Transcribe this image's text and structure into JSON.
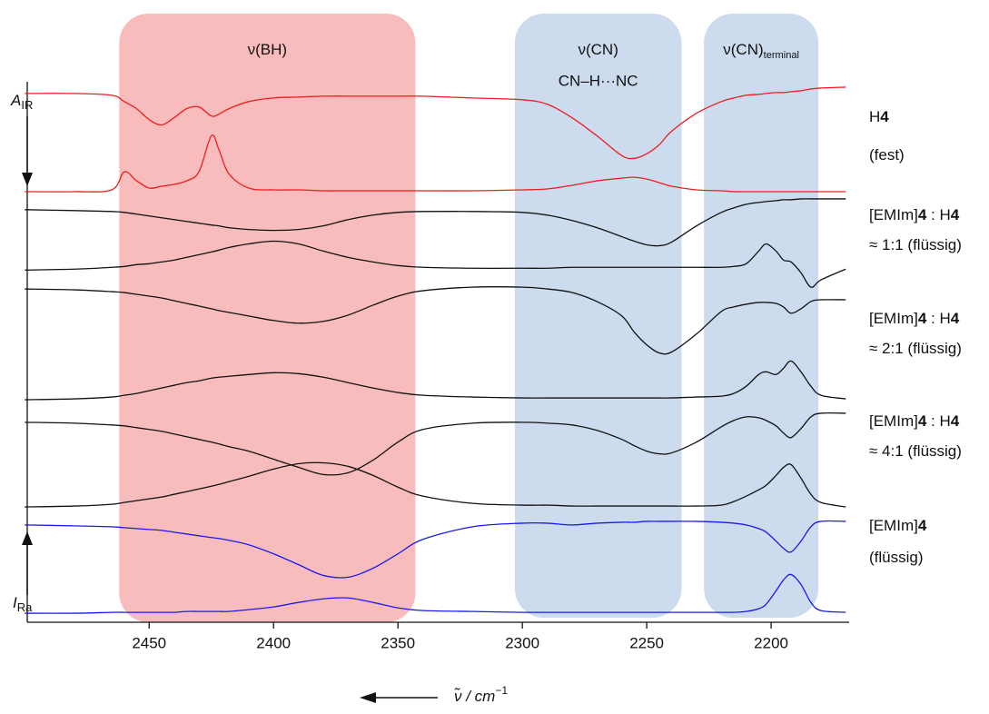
{
  "chart_data": {
    "type": "line",
    "xlim": [
      2499,
      2169
    ],
    "xticks": [
      2450,
      2400,
      2350,
      2300,
      2250,
      2200
    ],
    "ylim": [
      0,
      600
    ],
    "x_label": {
      "main": "ν̃ / cm",
      "sup": "−1"
    },
    "y_top_label": {
      "main": "A",
      "sub": "IR"
    },
    "y_bottom_label": {
      "main": "I",
      "sub": "Ra"
    },
    "regions": [
      {
        "xlim": [
          2462,
          2343
        ],
        "color": "#f9bcbc",
        "label": [
          {
            "text": "ν(BH)"
          }
        ]
      },
      {
        "xlim": [
          2303,
          2236
        ],
        "color": "#ccdcee",
        "label": [
          {
            "text": "ν(CN)"
          }
        ],
        "label2": "CN–H···NC"
      },
      {
        "xlim": [
          2227,
          2181
        ],
        "color": "#ccdcee",
        "label": [
          {
            "text": "ν(CN)"
          },
          {
            "text": "terminal",
            "sub": true
          }
        ]
      }
    ],
    "sample_labels": [
      [
        [
          {
            "text": "H"
          },
          {
            "text": "4",
            "bold": true
          }
        ],
        [
          {
            "text": "(fest)"
          }
        ]
      ],
      [
        [
          {
            "text": "[EMIm]"
          },
          {
            "text": "4",
            "bold": true
          },
          {
            "text": " : H"
          },
          {
            "text": "4",
            "bold": true
          }
        ],
        [
          {
            "text": "≈ 1:1 (flüssig)"
          }
        ]
      ],
      [
        [
          {
            "text": "[EMIm]"
          },
          {
            "text": "4",
            "bold": true
          },
          {
            "text": " : H"
          },
          {
            "text": "4",
            "bold": true
          }
        ],
        [
          {
            "text": "≈ 2:1 (flüssig)"
          }
        ]
      ],
      [
        [
          {
            "text": "[EMIm]"
          },
          {
            "text": "4",
            "bold": true
          },
          {
            "text": " : H"
          },
          {
            "text": "4",
            "bold": true
          }
        ],
        [
          {
            "text": "≈ 4:1 (flüssig)"
          }
        ]
      ],
      [
        [
          {
            "text": "[EMIm]"
          },
          {
            "text": "4",
            "bold": true
          }
        ],
        [
          {
            "text": "(flüssig)"
          }
        ]
      ]
    ],
    "x": [
      2500,
      2480,
      2465,
      2460,
      2455,
      2450,
      2445,
      2440,
      2435,
      2430,
      2425,
      2422,
      2418,
      2410,
      2400,
      2390,
      2380,
      2370,
      2360,
      2350,
      2340,
      2320,
      2300,
      2290,
      2280,
      2270,
      2260,
      2255,
      2250,
      2245,
      2240,
      2230,
      2220,
      2215,
      2210,
      2205,
      2202,
      2198,
      2195,
      2192,
      2188,
      2184,
      2180,
      2170
    ],
    "series": [
      {
        "color": "#ee1c1c",
        "values": [
          587,
          587,
          585,
          578,
          570,
          558,
          552,
          560,
          570,
          572,
          562,
          564,
          570,
          578,
          582,
          583,
          584,
          584,
          584,
          584,
          584,
          582,
          580,
          575,
          560,
          540,
          518,
          515,
          520,
          530,
          545,
          565,
          578,
          582,
          585,
          586,
          587,
          588,
          588,
          589,
          590,
          592,
          593,
          594
        ]
      },
      {
        "color": "#ee1c1c",
        "values": [
          478,
          478,
          480,
          500,
          490,
          482,
          484,
          486,
          490,
          500,
          540,
          525,
          498,
          482,
          480,
          480,
          479,
          479,
          479,
          479,
          479,
          479,
          480,
          481,
          485,
          490,
          493,
          494,
          492,
          488,
          484,
          480,
          479,
          478,
          478,
          478,
          478,
          478,
          478,
          478,
          478,
          478,
          478,
          478
        ]
      },
      {
        "color": "#111111",
        "values": [
          458,
          457,
          456,
          455,
          453,
          451,
          449,
          447,
          445,
          443,
          441,
          440,
          438,
          436,
          435,
          436,
          440,
          447,
          452,
          455,
          456,
          456,
          455,
          452,
          446,
          438,
          428,
          423,
          419,
          418,
          422,
          440,
          455,
          460,
          464,
          466,
          467,
          468,
          469,
          469,
          470,
          470,
          470,
          470
        ]
      },
      {
        "color": "#111111",
        "values": [
          391,
          392,
          394,
          395,
          397,
          398,
          400,
          402,
          405,
          408,
          411,
          413,
          416,
          420,
          423,
          420,
          412,
          405,
          400,
          396,
          394,
          393,
          393,
          393,
          394,
          394,
          394,
          394,
          394,
          394,
          394,
          394,
          394,
          395,
          398,
          412,
          420,
          412,
          402,
          400,
          388,
          372,
          380,
          392
        ]
      },
      {
        "color": "#111111",
        "values": [
          370,
          369,
          367,
          366,
          364,
          362,
          360,
          357,
          354,
          351,
          348,
          346,
          344,
          340,
          335,
          332,
          334,
          341,
          352,
          362,
          368,
          372,
          372,
          370,
          366,
          356,
          340,
          322,
          308,
          299,
          300,
          320,
          345,
          350,
          353,
          355,
          355,
          354,
          350,
          343,
          348,
          356,
          358,
          358
        ]
      },
      {
        "color": "#111111",
        "values": [
          247,
          248,
          250,
          252,
          254,
          257,
          260,
          263,
          266,
          268,
          271,
          272,
          273,
          275,
          277,
          276,
          272,
          266,
          260,
          255,
          252,
          250,
          249,
          249,
          249,
          249,
          249,
          249,
          249,
          249,
          249,
          250,
          251,
          254,
          262,
          275,
          278,
          275,
          282,
          290,
          278,
          262,
          252,
          248
        ]
      },
      {
        "color": "#111111",
        "values": [
          222,
          221,
          219,
          218,
          216,
          214,
          212,
          209,
          206,
          203,
          200,
          198,
          195,
          190,
          181,
          172,
          164,
          166,
          180,
          200,
          214,
          221,
          222,
          221,
          219,
          213,
          203,
          196,
          190,
          187,
          188,
          200,
          217,
          224,
          228,
          227,
          224,
          218,
          210,
          205,
          215,
          228,
          232,
          232
        ]
      },
      {
        "color": "#111111",
        "values": [
          128,
          129,
          131,
          133,
          135,
          137,
          139,
          142,
          145,
          148,
          151,
          153,
          156,
          162,
          170,
          176,
          177,
          173,
          163,
          150,
          140,
          132,
          130,
          130,
          129,
          129,
          129,
          129,
          129,
          129,
          129,
          129,
          130,
          134,
          140,
          147,
          152,
          163,
          172,
          175,
          160,
          142,
          133,
          128
        ]
      },
      {
        "color": "#1a1aee",
        "values": [
          108,
          107,
          106,
          105,
          104,
          103,
          102,
          100,
          98,
          96,
          94,
          93,
          91,
          86,
          76,
          64,
          52,
          50,
          60,
          76,
          92,
          106,
          110,
          110,
          108,
          110,
          111,
          111,
          112,
          112,
          112,
          112,
          111,
          110,
          108,
          104,
          100,
          90,
          82,
          78,
          90,
          106,
          112,
          112
        ]
      },
      {
        "color": "#1a1aee",
        "values": [
          10,
          10,
          11,
          11,
          11,
          11,
          11,
          11,
          12,
          12,
          12,
          12,
          12,
          14,
          17,
          22,
          26,
          27,
          22,
          16,
          13,
          12,
          11,
          11,
          11,
          11,
          11,
          11,
          11,
          11,
          11,
          11,
          11,
          11,
          12,
          15,
          20,
          35,
          47,
          53,
          42,
          22,
          13,
          11
        ]
      }
    ]
  }
}
